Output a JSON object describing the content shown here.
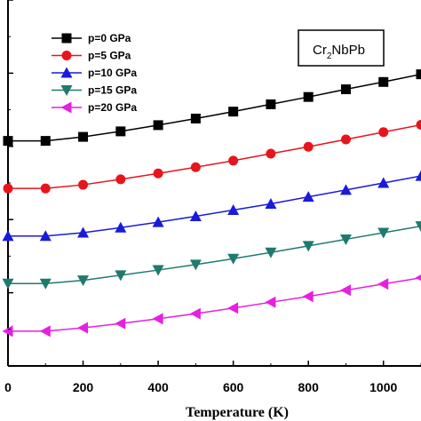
{
  "chart_data": {
    "type": "line",
    "xlabel": "Temperature (K)",
    "ylabel": "",
    "xlim": [
      0,
      1100
    ],
    "ylim": [
      0,
      1
    ],
    "x_ticks": [
      0,
      200,
      400,
      600,
      800,
      1000
    ],
    "x_tick_labels": [
      "0",
      "200",
      "400",
      "600",
      "800",
      "1000"
    ],
    "y_tick_count": 11,
    "grid": false,
    "legend_position": "top-left",
    "compound": {
      "main": "Cr",
      "sub": "2",
      "rest": "NbPb"
    },
    "x": [
      0,
      100,
      200,
      300,
      400,
      500,
      600,
      700,
      800,
      900,
      1000,
      1100
    ],
    "series": [
      {
        "name": "p=0 GPa",
        "marker": "square",
        "color": "#000000",
        "values": [
          0.615,
          0.615,
          0.626,
          0.641,
          0.658,
          0.676,
          0.695,
          0.715,
          0.735,
          0.756,
          0.776,
          0.797
        ]
      },
      {
        "name": "p=5 GPa",
        "marker": "circle",
        "color": "#e8141b",
        "values": [
          0.485,
          0.485,
          0.495,
          0.51,
          0.526,
          0.543,
          0.561,
          0.58,
          0.599,
          0.619,
          0.639,
          0.659
        ]
      },
      {
        "name": "p=10 GPa",
        "marker": "triangle-up",
        "color": "#1a1adb",
        "values": [
          0.355,
          0.355,
          0.364,
          0.378,
          0.393,
          0.409,
          0.426,
          0.443,
          0.462,
          0.481,
          0.5,
          0.519
        ]
      },
      {
        "name": "p=15 GPa",
        "marker": "triangle-down",
        "color": "#1f7a6e",
        "values": [
          0.225,
          0.225,
          0.234,
          0.248,
          0.262,
          0.277,
          0.293,
          0.31,
          0.328,
          0.346,
          0.364,
          0.382
        ]
      },
      {
        "name": "p=20 GPa",
        "marker": "triangle-left",
        "color": "#e61fe0",
        "values": [
          0.095,
          0.095,
          0.104,
          0.116,
          0.129,
          0.143,
          0.158,
          0.174,
          0.19,
          0.207,
          0.224,
          0.241
        ]
      }
    ]
  }
}
